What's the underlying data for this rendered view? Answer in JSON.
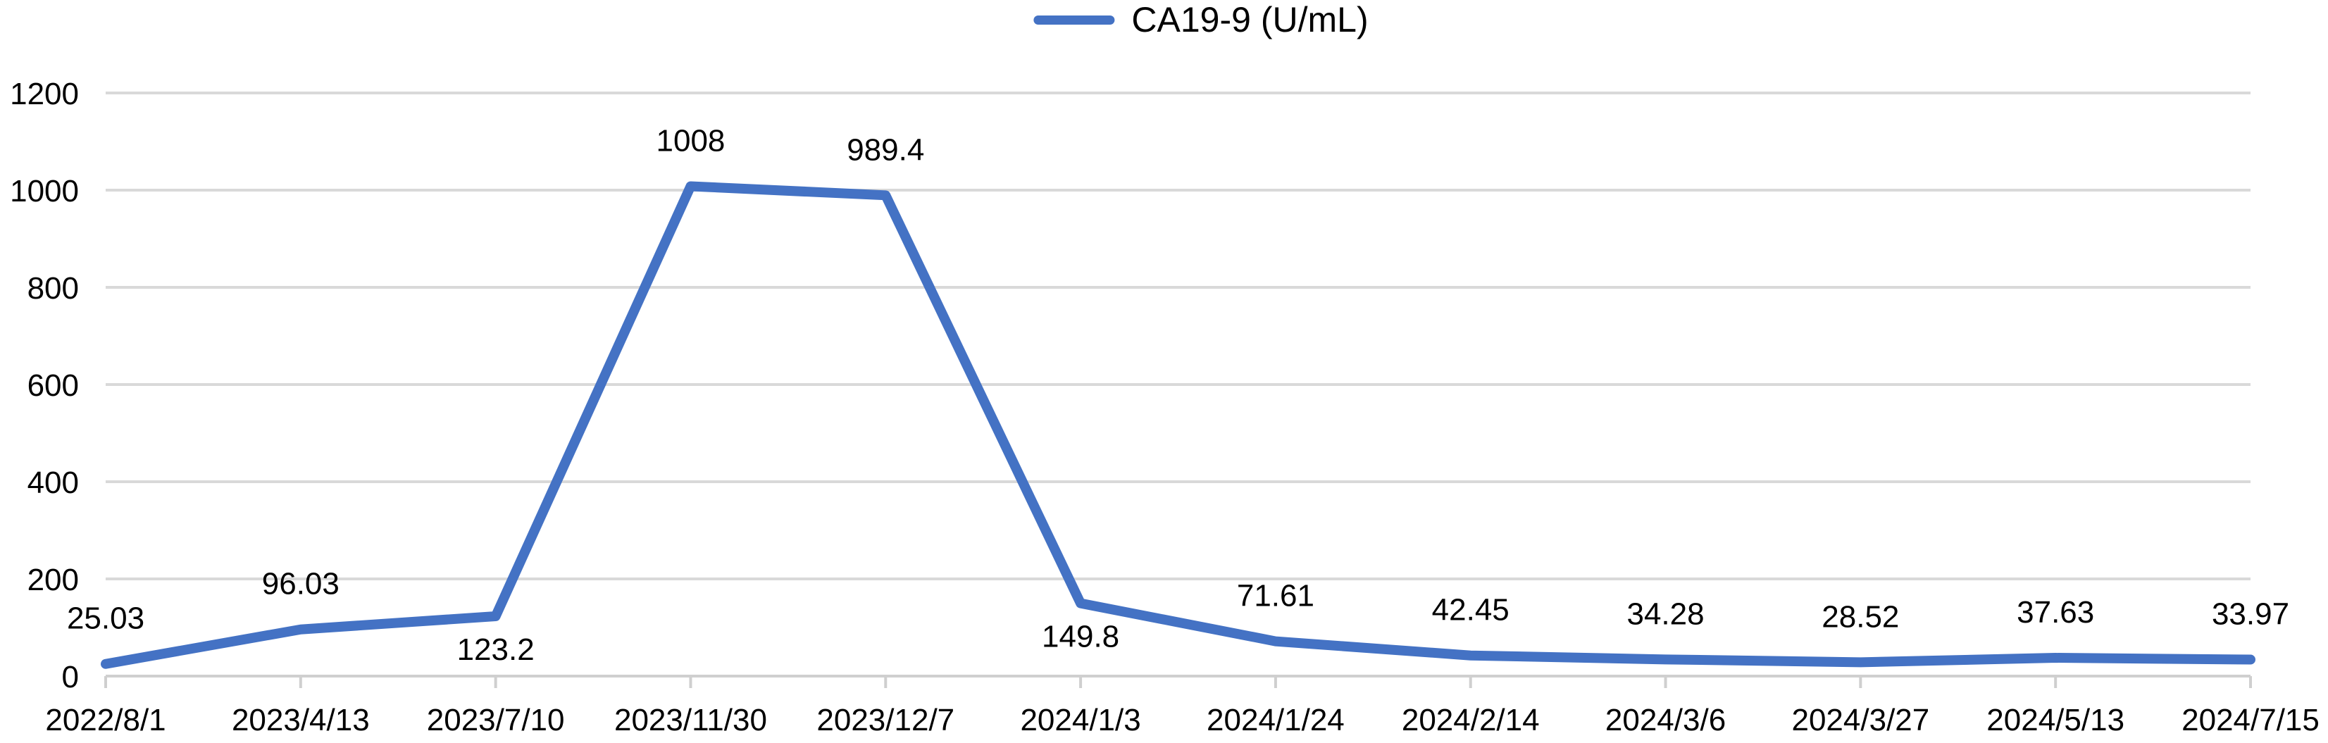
{
  "chart_data": {
    "type": "line",
    "title": "",
    "legend": {
      "label": "CA19-9 (U/mL)",
      "position": "top-center"
    },
    "categories": [
      "2022/8/1",
      "2023/4/13",
      "2023/7/10",
      "2023/11/30",
      "2023/12/7",
      "2024/1/3",
      "2024/1/24",
      "2024/2/14",
      "2024/3/6",
      "2024/3/27",
      "2024/5/13",
      "2024/7/15"
    ],
    "series": [
      {
        "name": "CA19-9 (U/mL)",
        "values": [
          25.03,
          96.03,
          123.2,
          1008,
          989.4,
          149.8,
          71.61,
          42.45,
          34.28,
          28.52,
          37.63,
          33.97
        ],
        "point_labels": [
          "25.03",
          "96.03",
          "123.2",
          "1008",
          "989.4",
          "149.8",
          "71.61",
          "42.45",
          "34.28",
          "28.52",
          "37.63",
          "33.97"
        ],
        "labels_below_point_indices": [
          2,
          5
        ],
        "color": "#4472C4"
      }
    ],
    "y_axis": {
      "min": 0,
      "max": 1200,
      "tick_step": 200,
      "tick_labels": [
        "0",
        "200",
        "400",
        "600",
        "800",
        "1000",
        "1200"
      ]
    },
    "x_axis": {
      "label": "",
      "tick_marks": "outside"
    },
    "grid": {
      "horizontal": true,
      "vertical": false,
      "color": "#D9D9D9"
    },
    "colors": {
      "line": "#4472C4",
      "gridline": "#D9D9D9",
      "axis": "#CFCFCF",
      "text": "#000000",
      "background": "#FFFFFF"
    }
  }
}
